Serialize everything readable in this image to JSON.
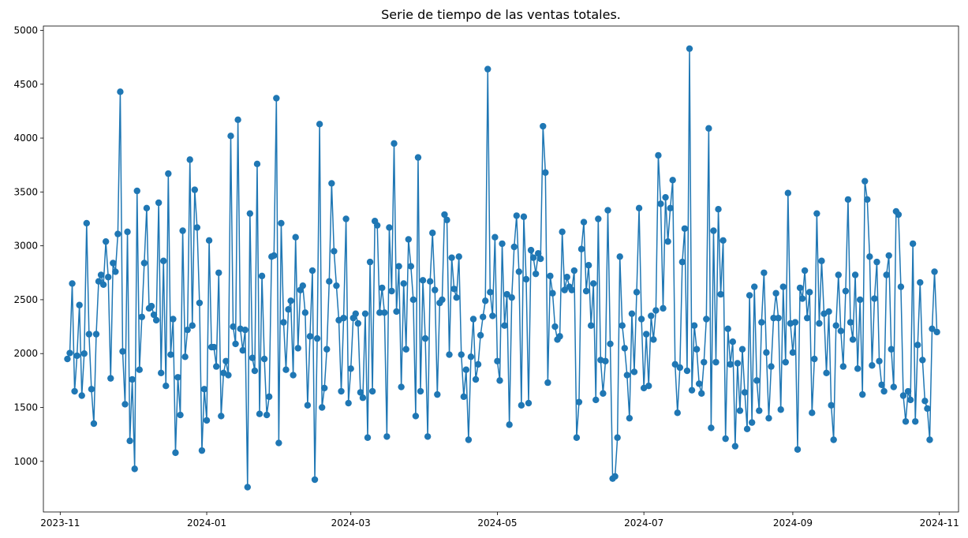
{
  "chart_data": {
    "type": "line",
    "title": "Serie de tiempo de las ventas totales.",
    "xlabel": "",
    "ylabel": "",
    "xlim": [
      "2023-10-25",
      "2024-11-09"
    ],
    "ylim": [
      530,
      5040
    ],
    "grid": false,
    "legend": "none",
    "line_color": "#1f77b4",
    "marker": "circle",
    "x_ticks": [
      "2023-11",
      "2024-01",
      "2024-03",
      "2024-05",
      "2024-07",
      "2024-09",
      "2024-11"
    ],
    "x_tick_dates": [
      "2023-11-01",
      "2024-01-01",
      "2024-03-01",
      "2024-05-01",
      "2024-07-01",
      "2024-09-01",
      "2024-11-01"
    ],
    "y_ticks": [
      1000,
      1500,
      2000,
      2500,
      3000,
      3500,
      4000,
      4500,
      5000
    ],
    "x": [
      "2023-11-04",
      "2023-11-05",
      "2023-11-06",
      "2023-11-07",
      "2023-11-08",
      "2023-11-09",
      "2023-11-10",
      "2023-11-11",
      "2023-11-12",
      "2023-11-13",
      "2023-11-14",
      "2023-11-15",
      "2023-11-16",
      "2023-11-17",
      "2023-11-18",
      "2023-11-19",
      "2023-11-20",
      "2023-11-21",
      "2023-11-22",
      "2023-11-23",
      "2023-11-24",
      "2023-11-25",
      "2023-11-26",
      "2023-11-27",
      "2023-11-28",
      "2023-11-29",
      "2023-11-30",
      "2023-12-01",
      "2023-12-02",
      "2023-12-03",
      "2023-12-04",
      "2023-12-05",
      "2023-12-06",
      "2023-12-07",
      "2023-12-08",
      "2023-12-09",
      "2023-12-10",
      "2023-12-11",
      "2023-12-12",
      "2023-12-13",
      "2023-12-14",
      "2023-12-15",
      "2023-12-16",
      "2023-12-17",
      "2023-12-18",
      "2023-12-19",
      "2023-12-20",
      "2023-12-21",
      "2023-12-22",
      "2023-12-23",
      "2023-12-24",
      "2023-12-25",
      "2023-12-26",
      "2023-12-27",
      "2023-12-28",
      "2023-12-29",
      "2023-12-30",
      "2023-12-31",
      "2024-01-01",
      "2024-01-02",
      "2024-01-03",
      "2024-01-04",
      "2024-01-05",
      "2024-01-06",
      "2024-01-07",
      "2024-01-08",
      "2024-01-09",
      "2024-01-10",
      "2024-01-11",
      "2024-01-12",
      "2024-01-13",
      "2024-01-14",
      "2024-01-15",
      "2024-01-16",
      "2024-01-17",
      "2024-01-18",
      "2024-01-19",
      "2024-01-20",
      "2024-01-21",
      "2024-01-22",
      "2024-01-23",
      "2024-01-24",
      "2024-01-25",
      "2024-01-26",
      "2024-01-27",
      "2024-01-28",
      "2024-01-29",
      "2024-01-30",
      "2024-01-31",
      "2024-02-01",
      "2024-02-02",
      "2024-02-03",
      "2024-02-04",
      "2024-02-05",
      "2024-02-06",
      "2024-02-07",
      "2024-02-08",
      "2024-02-09",
      "2024-02-10",
      "2024-02-11",
      "2024-02-12",
      "2024-02-13",
      "2024-02-14",
      "2024-02-15",
      "2024-02-16",
      "2024-02-17",
      "2024-02-18",
      "2024-02-19",
      "2024-02-20",
      "2024-02-21",
      "2024-02-22",
      "2024-02-23",
      "2024-02-24",
      "2024-02-25",
      "2024-02-26",
      "2024-02-27",
      "2024-02-28",
      "2024-02-29",
      "2024-03-01",
      "2024-03-02",
      "2024-03-03",
      "2024-03-04",
      "2024-03-05",
      "2024-03-06",
      "2024-03-07",
      "2024-03-08",
      "2024-03-09",
      "2024-03-10",
      "2024-03-11",
      "2024-03-12",
      "2024-03-13",
      "2024-03-14",
      "2024-03-15",
      "2024-03-16",
      "2024-03-17",
      "2024-03-18",
      "2024-03-19",
      "2024-03-20",
      "2024-03-21",
      "2024-03-22",
      "2024-03-23",
      "2024-03-24",
      "2024-03-25",
      "2024-03-26",
      "2024-03-27",
      "2024-03-28",
      "2024-03-29",
      "2024-03-30",
      "2024-03-31",
      "2024-04-01",
      "2024-04-02",
      "2024-04-03",
      "2024-04-04",
      "2024-04-05",
      "2024-04-06",
      "2024-04-07",
      "2024-04-08",
      "2024-04-09",
      "2024-04-10",
      "2024-04-11",
      "2024-04-12",
      "2024-04-13",
      "2024-04-14",
      "2024-04-15",
      "2024-04-16",
      "2024-04-17",
      "2024-04-18",
      "2024-04-19",
      "2024-04-20",
      "2024-04-21",
      "2024-04-22",
      "2024-04-23",
      "2024-04-24",
      "2024-04-25",
      "2024-04-26",
      "2024-04-27",
      "2024-04-28",
      "2024-04-29",
      "2024-04-30",
      "2024-05-01",
      "2024-05-02",
      "2024-05-03",
      "2024-05-04",
      "2024-05-05",
      "2024-05-06",
      "2024-05-07",
      "2024-05-08",
      "2024-05-09",
      "2024-05-10",
      "2024-05-11",
      "2024-05-12",
      "2024-05-13",
      "2024-05-14",
      "2024-05-15",
      "2024-05-16",
      "2024-05-17",
      "2024-05-18",
      "2024-05-19",
      "2024-05-20",
      "2024-05-21",
      "2024-05-22",
      "2024-05-23",
      "2024-05-24",
      "2024-05-25",
      "2024-05-26",
      "2024-05-27",
      "2024-05-28",
      "2024-05-29",
      "2024-05-30",
      "2024-05-31",
      "2024-06-01",
      "2024-06-02",
      "2024-06-03",
      "2024-06-04",
      "2024-06-05",
      "2024-06-06",
      "2024-06-07",
      "2024-06-08",
      "2024-06-09",
      "2024-06-10",
      "2024-06-11",
      "2024-06-12",
      "2024-06-13",
      "2024-06-14",
      "2024-06-15",
      "2024-06-16",
      "2024-06-17",
      "2024-06-18",
      "2024-06-19",
      "2024-06-20",
      "2024-06-21",
      "2024-06-22",
      "2024-06-23",
      "2024-06-24",
      "2024-06-25",
      "2024-06-26",
      "2024-06-27",
      "2024-06-28",
      "2024-06-29",
      "2024-06-30",
      "2024-07-01",
      "2024-07-02",
      "2024-07-03",
      "2024-07-04",
      "2024-07-05",
      "2024-07-06",
      "2024-07-07",
      "2024-07-08",
      "2024-07-09",
      "2024-07-10",
      "2024-07-11",
      "2024-07-12",
      "2024-07-13",
      "2024-07-14",
      "2024-07-15",
      "2024-07-16",
      "2024-07-17",
      "2024-07-18",
      "2024-07-19",
      "2024-07-20",
      "2024-07-21",
      "2024-07-22",
      "2024-07-23",
      "2024-07-24",
      "2024-07-25",
      "2024-07-26",
      "2024-07-27",
      "2024-07-28",
      "2024-07-29",
      "2024-07-30",
      "2024-07-31",
      "2024-08-01",
      "2024-08-02",
      "2024-08-03",
      "2024-08-04",
      "2024-08-05",
      "2024-08-06",
      "2024-08-07",
      "2024-08-08",
      "2024-08-09",
      "2024-08-10",
      "2024-08-11",
      "2024-08-12",
      "2024-08-13",
      "2024-08-14",
      "2024-08-15",
      "2024-08-16",
      "2024-08-17",
      "2024-08-18",
      "2024-08-19",
      "2024-08-20",
      "2024-08-21",
      "2024-08-22",
      "2024-08-23",
      "2024-08-24",
      "2024-08-25",
      "2024-08-26",
      "2024-08-27",
      "2024-08-28",
      "2024-08-29",
      "2024-08-30",
      "2024-08-31",
      "2024-09-01",
      "2024-09-02",
      "2024-09-03",
      "2024-09-04",
      "2024-09-05",
      "2024-09-06",
      "2024-09-07",
      "2024-09-08",
      "2024-09-09",
      "2024-09-10",
      "2024-09-11",
      "2024-09-12",
      "2024-09-13",
      "2024-09-14",
      "2024-09-15",
      "2024-09-16",
      "2024-09-17",
      "2024-09-18",
      "2024-09-19",
      "2024-09-20",
      "2024-09-21",
      "2024-09-22",
      "2024-09-23",
      "2024-09-24",
      "2024-09-25",
      "2024-09-26",
      "2024-09-27",
      "2024-09-28",
      "2024-09-29",
      "2024-09-30",
      "2024-10-01",
      "2024-10-02",
      "2024-10-03",
      "2024-10-04",
      "2024-10-05",
      "2024-10-06",
      "2024-10-07",
      "2024-10-08",
      "2024-10-09",
      "2024-10-10",
      "2024-10-11",
      "2024-10-12",
      "2024-10-13",
      "2024-10-14",
      "2024-10-15",
      "2024-10-16",
      "2024-10-17",
      "2024-10-18",
      "2024-10-19",
      "2024-10-20",
      "2024-10-21",
      "2024-10-22",
      "2024-10-23",
      "2024-10-24",
      "2024-10-25",
      "2024-10-26",
      "2024-10-27",
      "2024-10-28",
      "2024-10-29",
      "2024-10-30",
      "2024-10-31"
    ],
    "values": [
      1950,
      2005,
      2650,
      1650,
      1980,
      2450,
      1610,
      2000,
      3210,
      2180,
      1670,
      1350,
      2180,
      2670,
      2730,
      2640,
      3040,
      2710,
      1770,
      2840,
      2760,
      3110,
      4430,
      2020,
      1530,
      3130,
      1190,
      1760,
      930,
      3510,
      1850,
      2340,
      2840,
      3350,
      2420,
      2440,
      2360,
      2310,
      3400,
      1820,
      2860,
      1700,
      3670,
      1990,
      2320,
      1080,
      1780,
      1430,
      3140,
      1970,
      2220,
      3800,
      2260,
      3520,
      3170,
      2470,
      1100,
      1670,
      1380,
      3050,
      2060,
      2060,
      1880,
      2750,
      1420,
      1820,
      1930,
      1800,
      4020,
      2250,
      2090,
      4170,
      2230,
      2030,
      2220,
      760,
      3300,
      1960,
      1840,
      3760,
      1440,
      2720,
      1950,
      1430,
      1600,
      2900,
      2910,
      4370,
      1170,
      3210,
      2290,
      1850,
      2410,
      2490,
      1800,
      3080,
      2050,
      2590,
      2630,
      2380,
      1520,
      2160,
      2770,
      830,
      2140,
      4130,
      1500,
      1680,
      2040,
      2670,
      3580,
      2950,
      2630,
      2310,
      1650,
      2330,
      3250,
      1540,
      1860,
      2330,
      2370,
      2280,
      1640,
      1590,
      2370,
      1220,
      2850,
      1650,
      3230,
      3190,
      2380,
      2610,
      2380,
      1230,
      3170,
      2580,
      3950,
      2390,
      2810,
      1690,
      2650,
      2040,
      3060,
      2810,
      2500,
      1420,
      3820,
      1650,
      2680,
      2140,
      1230,
      2670,
      3120,
      2590,
      1620,
      2470,
      2500,
      3290,
      3240,
      1990,
      2890,
      2600,
      2520,
      2900,
      1990,
      1600,
      1850,
      1200,
      1970,
      2320,
      1760,
      1900,
      2170,
      2340,
      2490,
      4640,
      2570,
      2350,
      3080,
      1930,
      1750,
      3020,
      2260,
      2550,
      1340,
      2520,
      2990,
      3280,
      2760,
      1520,
      3270,
      2690,
      1540,
      2960,
      2890,
      2740,
      2930,
      2880,
      4110,
      3680,
      1730,
      2720,
      2560,
      2250,
      2130,
      2160,
      3130,
      2590,
      2710,
      2620,
      2590,
      2770,
      1220,
      1550,
      2970,
      3220,
      2580,
      2820,
      2260,
      2650,
      1570,
      3250,
      1940,
      1630,
      1930,
      3330,
      2090,
      840,
      860,
      1220,
      2900,
      2260,
      2050,
      1800,
      1400,
      2370,
      1830,
      2570,
      3350,
      2320,
      1680,
      2180,
      1700,
      2350,
      2130,
      2400,
      3840,
      3390,
      2420,
      3450,
      3040,
      3350,
      3610,
      1900,
      1450,
      1870,
      2850,
      3160,
      1840,
      4830,
      1660,
      2260,
      2040,
      1720,
      1630,
      1920,
      2320,
      4090,
      1310,
      3140,
      1920,
      3340,
      2550,
      3050,
      1210,
      2230,
      1900,
      2110,
      1140,
      1910,
      1470,
      2040,
      1640,
      1300,
      2540,
      1360,
      2620,
      1750,
      1470,
      2290,
      2750,
      2010,
      1400,
      1880,
      2330,
      2560,
      2330,
      1480,
      2620,
      1920,
      3490,
      2280,
      2010,
      2290,
      1110,
      2610,
      2510,
      2770,
      2330,
      2570,
      1450,
      1950,
      3300,
      2280,
      2860,
      2370,
      1820,
      2390,
      1520,
      1200,
      2260,
      2730,
      2210,
      1880,
      2580,
      3430,
      2290,
      2130,
      2730,
      1860,
      2500,
      1620,
      3600,
      3430,
      2900,
      1890,
      2510,
      2850,
      1930,
      1710,
      1650,
      2730,
      2910,
      2040,
      1690,
      3320,
      3290,
      2620,
      1610,
      1370,
      1650,
      1570,
      3020,
      1370,
      2080,
      2660,
      1940,
      1560,
      1490,
      1200,
      2230,
      2760,
      2200
    ]
  }
}
